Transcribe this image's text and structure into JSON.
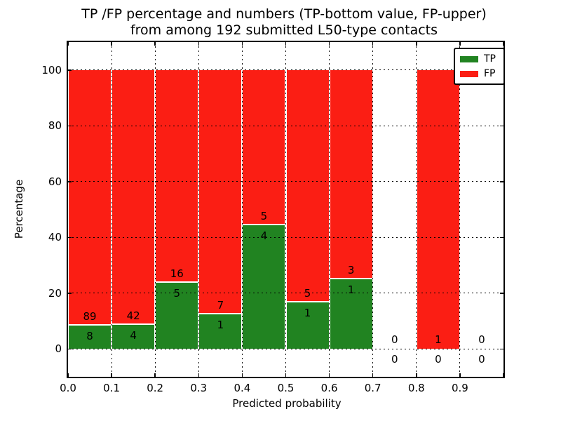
{
  "title": {
    "line1": "TP /FP percentage and numbers (TP-bottom value, FP-upper)",
    "line2": "from among 192 submitted L50-type contacts"
  },
  "chart_data": {
    "type": "bar",
    "stacked": true,
    "title": "TP /FP percentage and numbers (TP-bottom value, FP-upper) from among 192 submitted L50-type contacts",
    "title_line1": "TP /FP percentage and numbers (TP-bottom value, FP-upper)",
    "title_line2": "from among 192 submitted L50-type contacts",
    "xlabel": "Predicted probability",
    "ylabel": "Percentage",
    "total_contacts": 192,
    "categories": [
      "0.0-0.1",
      "0.1-0.2",
      "0.2-0.3",
      "0.3-0.4",
      "0.4-0.5",
      "0.5-0.6",
      "0.6-0.7",
      "0.7-0.8",
      "0.8-0.9",
      "0.9-1.0"
    ],
    "bin_width": 0.1,
    "series": [
      {
        "name": "TP",
        "color": "#218321",
        "values": [
          8,
          4,
          5,
          1,
          4,
          1,
          1,
          0,
          0,
          0
        ]
      },
      {
        "name": "FP",
        "color": "#fb1e14",
        "values": [
          89,
          42,
          16,
          7,
          5,
          5,
          3,
          0,
          1,
          0
        ]
      }
    ],
    "bar_rule": "bars stacked to 100% when bin count > 0; TP bottom share = tp/(tp+fp)*100; FP count printed above TP/FP boundary, TP count printed below it",
    "tp_percentages": [
      8.25,
      8.7,
      23.81,
      12.5,
      44.44,
      16.67,
      25.0,
      0,
      0,
      0
    ],
    "x_ticks": [
      "0.0",
      "0.1",
      "0.2",
      "0.3",
      "0.4",
      "0.5",
      "0.6",
      "0.7",
      "0.8",
      "0.9"
    ],
    "y_ticks": [
      0,
      20,
      40,
      60,
      80,
      100
    ],
    "xlim": [
      0.0,
      1.0
    ],
    "ylim": [
      -10,
      110
    ],
    "grid": "dotted",
    "legend_position": "upper right"
  }
}
